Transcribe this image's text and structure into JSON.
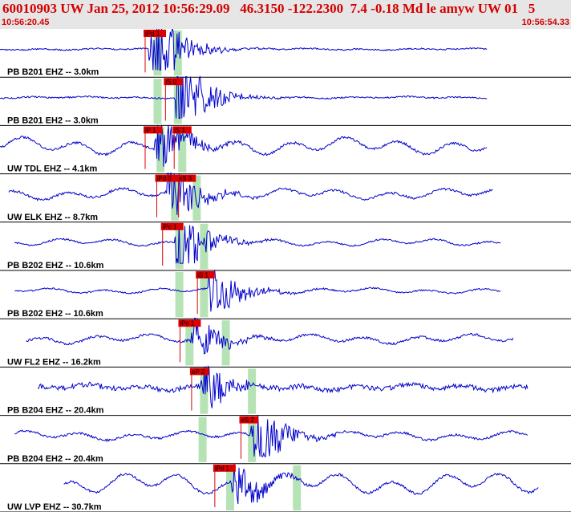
{
  "header": {
    "title": "60010903 UW Jan 25, 2012 10:56:29.09   46.3150 -122.2300  7.4 -0.18 Md le amyw UW 01   5",
    "time_start": "10:56:20.45",
    "time_end": "10:56:54.33"
  },
  "colors": {
    "header_bg": "#e6e6e6",
    "header_text": "#d40000",
    "trace": "#0000cc",
    "pick": "#dd0000",
    "window": "#b6e3b6",
    "divider": "#000000"
  },
  "chart_data": {
    "type": "seismogram",
    "time_range": [
      "10:56:20.45",
      "10:56:54.33"
    ],
    "channels": [
      {
        "label": "PB B201 EHZ -- 3.0km",
        "picks": [
          {
            "label": "iPd 1",
            "t": 10.0
          }
        ],
        "windows": [
          10.8,
          12.2
        ],
        "start": 0.0,
        "end": 33.6,
        "onset": 10.2,
        "amp": 0.3,
        "burst": 2.8,
        "wave": 0.1
      },
      {
        "label": "PB B201 EH2 -- 3.0km",
        "picks": [
          {
            "label": "iS 0",
            "t": 11.4
          }
        ],
        "windows": [
          10.8,
          12.2
        ],
        "start": 0.0,
        "end": 33.6,
        "onset": 12.0,
        "amp": 0.3,
        "burst": 2.6,
        "wave": 0.1
      },
      {
        "label": "UW TDL EHZ -- 4.1km",
        "picks": [
          {
            "label": "iP 1",
            "t": 10.0
          },
          {
            "label": "iS 1",
            "t": 12.0
          }
        ],
        "windows": [
          11.0,
          12.5
        ],
        "start": 0.0,
        "end": 33.6,
        "onset": 10.6,
        "amp": 0.5,
        "burst": 1.8,
        "wave": 0.9
      },
      {
        "label": "UW ELK EHZ -- 8.7km",
        "picks": [
          {
            "label": "iPd 0",
            "t": 10.8
          },
          {
            "label": "eS 3",
            "t": 12.3
          }
        ],
        "windows": [
          12.0,
          13.5
        ],
        "start": 0.6,
        "end": 34.0,
        "onset": 11.4,
        "amp": 0.5,
        "burst": 2.0,
        "wave": 0.6
      },
      {
        "label": "PB B202 EHZ -- 10.6km",
        "picks": [
          {
            "label": "iPc 1",
            "t": 11.2
          }
        ],
        "windows": [
          12.3,
          14.0
        ],
        "start": 1.0,
        "end": 34.5,
        "onset": 12.0,
        "amp": 0.35,
        "burst": 2.0,
        "wave": 0.4
      },
      {
        "label": "PB B202 EH2 -- 10.6km",
        "picks": [
          {
            "label": "iS 1",
            "t": 13.6
          }
        ],
        "windows": [
          12.3,
          14.0
        ],
        "start": 1.0,
        "end": 34.5,
        "onset": 14.3,
        "amp": 0.3,
        "burst": 1.8,
        "wave": 0.3
      },
      {
        "label": "UW FL2 EHZ -- 16.2km",
        "picks": [
          {
            "label": "iPc 1",
            "t": 12.4
          }
        ],
        "windows": [
          13.0,
          15.5
        ],
        "start": 1.8,
        "end": 35.4,
        "onset": 13.1,
        "amp": 0.5,
        "burst": 1.4,
        "wave": 0.5
      },
      {
        "label": "PB B204 EHZ -- 20.4km",
        "picks": [
          {
            "label": "eP 2",
            "t": 13.2
          }
        ],
        "windows": [
          14.0,
          17.3
        ],
        "start": 2.6,
        "end": 36.4,
        "onset": 13.8,
        "amp": 1.0,
        "burst": 1.6,
        "wave": 0.3
      },
      {
        "label": "PB B204 EH2 -- 20.4km",
        "picks": [
          {
            "label": "eS 2",
            "t": 16.6
          }
        ],
        "windows": [
          13.9,
          17.3
        ],
        "start": 1.0,
        "end": 36.4,
        "onset": 17.2,
        "amp": 0.45,
        "burst": 2.4,
        "wave": 0.5
      },
      {
        "label": "UW LVP EHZ -- 30.7km",
        "picks": [
          {
            "label": "iPd 1",
            "t": 14.8
          }
        ],
        "windows": [
          15.8,
          20.4
        ],
        "start": 4.4,
        "end": 40.0,
        "onset": 15.9,
        "amp": 0.5,
        "burst": 1.3,
        "wave": 1.2
      }
    ]
  }
}
